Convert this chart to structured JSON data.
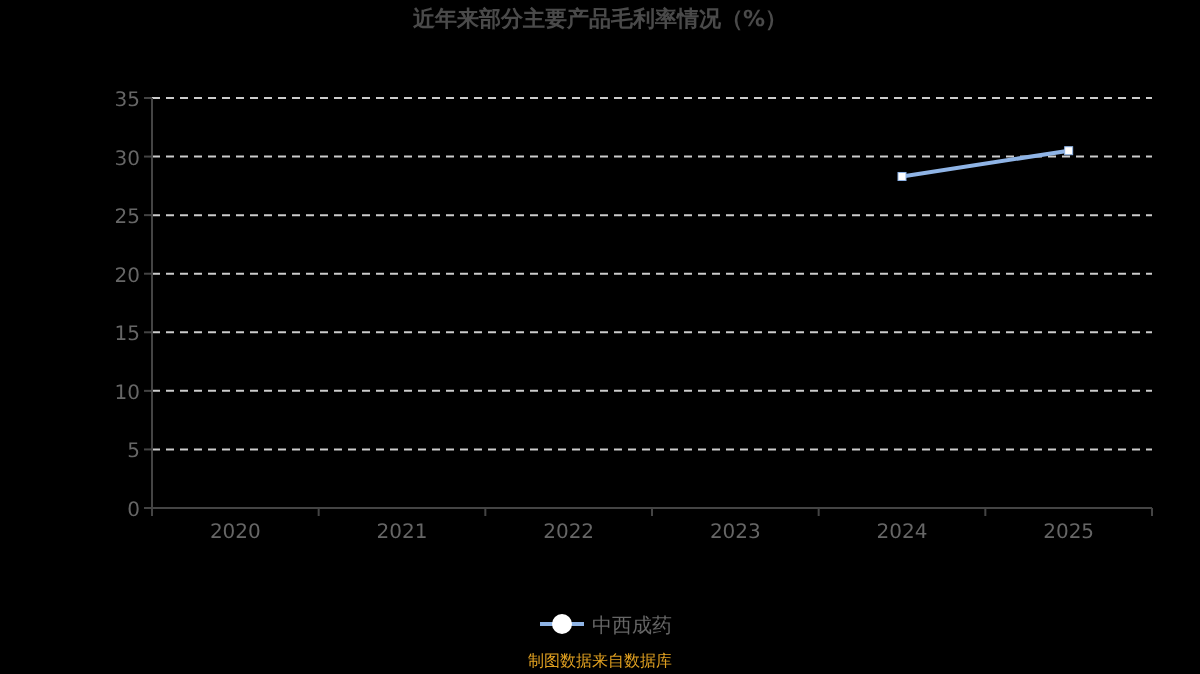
{
  "chart_data": {
    "type": "line",
    "title": "近年来部分主要产品毛利率情况（%）",
    "categories": [
      "2020",
      "2021",
      "2022",
      "2023",
      "2024",
      "2025"
    ],
    "series": [
      {
        "name": "中西成药",
        "color": "#8fb4e6",
        "values": [
          null,
          null,
          null,
          null,
          28.3,
          30.5
        ]
      }
    ],
    "ylim": [
      0,
      35
    ],
    "yticks": [
      0,
      5,
      10,
      15,
      20,
      25,
      30,
      35
    ],
    "grid": "y",
    "legend": "bottom",
    "marker": "square",
    "line_style": "solid",
    "annotations": [
      "制图数据来自数据库"
    ]
  }
}
